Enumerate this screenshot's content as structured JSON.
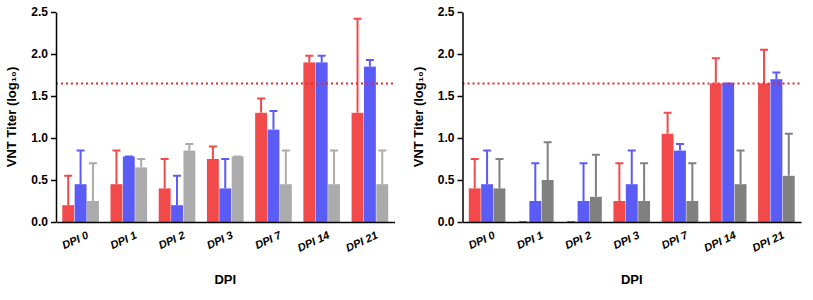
{
  "chart_data": [
    {
      "type": "bar",
      "x_label": "DPI",
      "y_label": "VNT Titer (log₁₀)",
      "categories": [
        "DPI 0",
        "DPI 1",
        "DPI 2",
        "DPI 3",
        "DPI 7",
        "DPI 14",
        "DPI 21"
      ],
      "series": [
        {
          "color": "#f24a4a",
          "values": [
            0.2,
            0.45,
            0.4,
            0.75,
            1.3,
            1.9,
            1.3
          ],
          "errors": [
            0.35,
            0.4,
            0.35,
            0.15,
            0.17,
            0.08,
            1.12
          ]
        },
        {
          "color": "#5b5bf5",
          "values": [
            0.45,
            0.78,
            0.2,
            0.4,
            1.1,
            1.9,
            1.85
          ],
          "errors": [
            0.4,
            0,
            0.35,
            0.35,
            0.22,
            0.08,
            0.08
          ]
        },
        {
          "color": "#ababab",
          "values": [
            0.25,
            0.65,
            0.85,
            0.78,
            0.45,
            0.45,
            0.45
          ],
          "errors": [
            0.45,
            0.1,
            0.08,
            0,
            0.4,
            0.4,
            0.4
          ]
        }
      ],
      "threshold": 1.65,
      "ylim": [
        0,
        2.5
      ],
      "yticks": [
        {
          "value": 0,
          "label": "0.0"
        },
        0.5,
        {
          "value": 1,
          "label": "1.0"
        },
        1.5,
        {
          "value": 2,
          "label": "2.0"
        },
        2.5
      ]
    },
    {
      "type": "bar",
      "x_label": "DPI",
      "y_label": "VNT Titer (log₁₀)",
      "categories": [
        "DPI 0",
        "DPI 1",
        "DPI 2",
        "DPI 3",
        "DPI 7",
        "DPI 14",
        "DPI 21"
      ],
      "series": [
        {
          "color": "#f24a4a",
          "values": [
            0.4,
            0,
            0,
            0.25,
            1.05,
            1.65,
            1.65
          ],
          "errors": [
            0.35,
            0,
            0,
            0.45,
            0.25,
            0.3,
            0.4
          ]
        },
        {
          "color": "#5b5bf5",
          "values": [
            0.45,
            0.25,
            0.25,
            0.45,
            0.85,
            1.65,
            1.7
          ],
          "errors": [
            0.4,
            0.45,
            0.45,
            0.4,
            0.08,
            0,
            0.08
          ]
        },
        {
          "color": "#808080",
          "values": [
            0.4,
            0.5,
            0.3,
            0.25,
            0.25,
            0.45,
            0.55
          ],
          "errors": [
            0.35,
            0.45,
            0.5,
            0.45,
            0.45,
            0.4,
            0.5
          ]
        }
      ],
      "threshold": 1.65,
      "ylim": [
        0,
        2.5
      ],
      "yticks": [
        {
          "value": 0,
          "label": "0.0"
        },
        0.5,
        {
          "value": 1,
          "label": "1.0"
        },
        1.5,
        {
          "value": 2,
          "label": "2.0"
        },
        2.5
      ]
    }
  ]
}
